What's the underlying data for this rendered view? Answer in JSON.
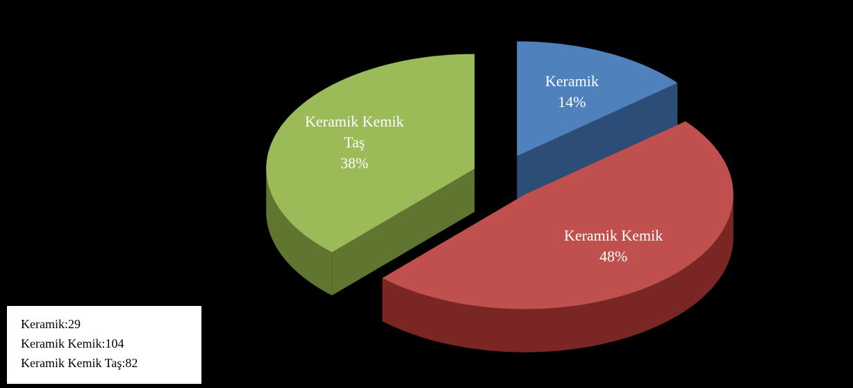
{
  "chart_data": {
    "type": "pie",
    "categories": [
      "Keramik",
      "Keramik Kemik",
      "Keramik Kemik Taş"
    ],
    "values": [
      14,
      48,
      38
    ],
    "value_labels": [
      "14%",
      "48%",
      "38%"
    ],
    "colors": [
      "#4f81bd",
      "#c0504d",
      "#9bbb59"
    ],
    "side_colors": [
      "#2c4d75",
      "#7a2624",
      "#5f7530"
    ],
    "annotations": [
      "Keramik:29",
      "Keramik Kemik:104",
      "Keramik Kemik Taş:82"
    ]
  }
}
